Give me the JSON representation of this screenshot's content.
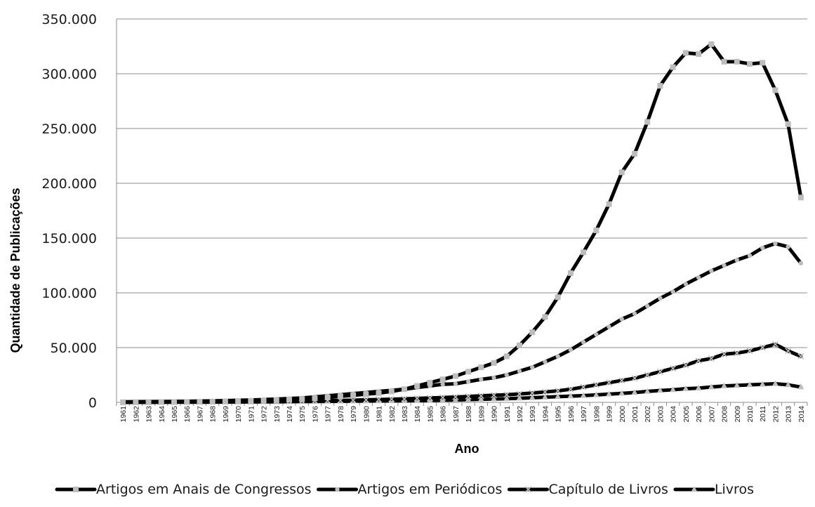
{
  "chart_data": {
    "type": "line",
    "title": "",
    "xlabel": "Ano",
    "ylabel": "Quantidade  de Publicações",
    "ylim": [
      0,
      350000
    ],
    "yticks": [
      0,
      50000,
      100000,
      150000,
      200000,
      250000,
      300000,
      350000
    ],
    "ytick_labels": [
      "0",
      "50.000",
      "100.000",
      "150.000",
      "200.000",
      "250.000",
      "300.000",
      "350.000"
    ],
    "grid": true,
    "legend_position": "bottom",
    "x": [
      "1961",
      "1962",
      "1963",
      "1964",
      "1965",
      "1966",
      "1967",
      "1968",
      "1969",
      "1970",
      "1971",
      "1972",
      "1973",
      "1974",
      "1975",
      "1976",
      "1977",
      "1978",
      "1979",
      "1980",
      "1981",
      "1982",
      "1983",
      "1984",
      "1985",
      "1986",
      "1987",
      "1988",
      "1989",
      "1990",
      "1991",
      "1992",
      "1993",
      "1994",
      "1995",
      "1996",
      "1997",
      "1998",
      "1999",
      "2000",
      "2001",
      "2002",
      "2003",
      "2004",
      "2005",
      "2006",
      "2007",
      "2008",
      "2009",
      "2010",
      "2011",
      "2012",
      "2013",
      "2014"
    ],
    "series": [
      {
        "name": "Artigos em Anais de Congressos",
        "marker": "square",
        "marker_color": "#bdbdbd",
        "values": [
          100,
          150,
          200,
          200,
          300,
          400,
          500,
          700,
          900,
          1100,
          1300,
          1600,
          2000,
          2500,
          3000,
          3700,
          4500,
          5500,
          6500,
          7500,
          8500,
          10000,
          12000,
          15000,
          18000,
          21000,
          24000,
          28000,
          32000,
          36000,
          42000,
          52000,
          64000,
          78000,
          96000,
          118000,
          137000,
          157000,
          181000,
          210000,
          227000,
          256000,
          289000,
          306000,
          319000,
          318000,
          327000,
          311000,
          311000,
          309000,
          310000,
          285000,
          254000,
          187000
        ]
      },
      {
        "name": "Artigos em Periódicos",
        "marker": "circle",
        "marker_color": "#bdbdbd",
        "values": [
          500,
          600,
          700,
          800,
          900,
          1000,
          1200,
          1400,
          1600,
          1900,
          2200,
          2600,
          3000,
          3500,
          4000,
          5000,
          6000,
          7000,
          8000,
          9000,
          10000,
          11000,
          12000,
          13500,
          15000,
          16500,
          17000,
          19000,
          21000,
          22500,
          25000,
          28500,
          32000,
          37000,
          42000,
          48000,
          55000,
          62000,
          69000,
          76000,
          81000,
          88000,
          95000,
          101000,
          108000,
          114000,
          120000,
          125000,
          130000,
          134000,
          141000,
          145000,
          142000,
          127000
        ]
      },
      {
        "name": "Capítulo de Livros",
        "marker": "x",
        "marker_color": "#bdbdbd",
        "values": [
          100,
          150,
          200,
          250,
          300,
          350,
          400,
          450,
          500,
          600,
          700,
          800,
          900,
          1000,
          1200,
          1400,
          1600,
          1800,
          2000,
          2300,
          2600,
          2900,
          3200,
          3600,
          4000,
          4400,
          4900,
          5400,
          6000,
          6500,
          7000,
          7700,
          8500,
          9500,
          10500,
          12000,
          14000,
          16000,
          18000,
          20000,
          22000,
          25000,
          28000,
          31000,
          34000,
          38000,
          40000,
          44000,
          45000,
          47000,
          50000,
          53000,
          47000,
          42000
        ]
      },
      {
        "name": "Livros",
        "marker": "triangle",
        "marker_color": "#bdbdbd",
        "values": [
          50,
          80,
          100,
          120,
          150,
          180,
          200,
          250,
          300,
          350,
          400,
          450,
          500,
          600,
          700,
          800,
          900,
          1000,
          1100,
          1200,
          1300,
          1400,
          1500,
          1600,
          1800,
          2000,
          2200,
          2500,
          2800,
          3100,
          3400,
          3800,
          4200,
          4700,
          5200,
          5700,
          6200,
          6800,
          7500,
          8200,
          9000,
          10000,
          10800,
          11500,
          12500,
          13000,
          14000,
          15000,
          15500,
          16000,
          16500,
          17000,
          16000,
          14000
        ]
      }
    ]
  }
}
